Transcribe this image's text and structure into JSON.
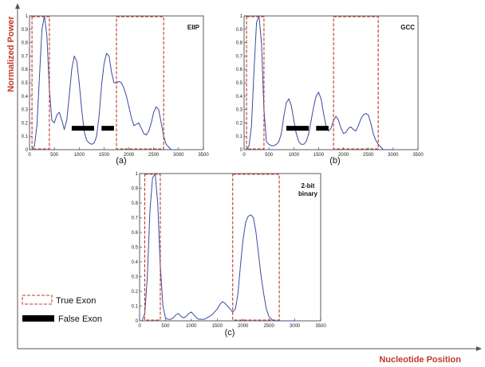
{
  "figure": {
    "ylabel": "Normalized  Power",
    "xlabel": "Nucleotide Position",
    "legend": {
      "true_exon": "True Exon",
      "false_exon": "False  Exon"
    },
    "colors": {
      "curve": "#3b4a9c",
      "true_exon": "#c0392b",
      "false_exon": "#000000",
      "axis_title": "#c0392b"
    }
  },
  "chart_data": [
    {
      "type": "line",
      "title": "EIIP",
      "caption": "(a)",
      "xlim": [
        0,
        3500
      ],
      "ylim": [
        0,
        1
      ],
      "xticks": [
        "0",
        "500",
        "1000",
        "1500",
        "2000",
        "2500",
        "3000",
        "3500"
      ],
      "yticks": [
        "0",
        "0.1",
        "0.2",
        "0.3",
        "0.4",
        "0.5",
        "0.6",
        "0.7",
        "0.8",
        "0.9",
        "1"
      ],
      "x": [
        0,
        50,
        100,
        150,
        200,
        250,
        300,
        350,
        400,
        450,
        500,
        550,
        600,
        650,
        700,
        750,
        800,
        850,
        900,
        950,
        1000,
        1050,
        1100,
        1150,
        1200,
        1250,
        1300,
        1350,
        1400,
        1450,
        1500,
        1550,
        1600,
        1650,
        1700,
        1750,
        1800,
        1850,
        1900,
        1950,
        2000,
        2050,
        2100,
        2150,
        2200,
        2250,
        2300,
        2350,
        2400,
        2450,
        2500,
        2550,
        2600,
        2650,
        2700,
        2750,
        2800,
        2850,
        2900,
        2950,
        3000
      ],
      "y": [
        0.0,
        0.0,
        0.03,
        0.18,
        0.55,
        0.9,
        1.0,
        0.85,
        0.45,
        0.22,
        0.2,
        0.26,
        0.28,
        0.22,
        0.15,
        0.22,
        0.4,
        0.6,
        0.7,
        0.66,
        0.5,
        0.3,
        0.14,
        0.07,
        0.05,
        0.04,
        0.05,
        0.1,
        0.25,
        0.48,
        0.64,
        0.72,
        0.7,
        0.58,
        0.5,
        0.5,
        0.51,
        0.5,
        0.46,
        0.4,
        0.32,
        0.24,
        0.18,
        0.19,
        0.2,
        0.16,
        0.12,
        0.11,
        0.14,
        0.2,
        0.28,
        0.32,
        0.3,
        0.2,
        0.1,
        0.04,
        0.02,
        0.0,
        0.0,
        0.0,
        0.0
      ],
      "true_exons": [
        [
          50,
          400
        ],
        [
          1750,
          2700
        ]
      ],
      "false_exons": [
        [
          850,
          1300
        ],
        [
          1450,
          1700
        ]
      ],
      "false_exon_level": 0.16
    },
    {
      "type": "line",
      "title": "GCC",
      "caption": "(b)",
      "xlim": [
        0,
        3500
      ],
      "ylim": [
        0,
        1
      ],
      "xticks": [
        "0",
        "500",
        "1000",
        "1500",
        "2000",
        "2500",
        "3000",
        "3500"
      ],
      "yticks": [
        "0",
        "0.1",
        "0.2",
        "0.3",
        "0.4",
        "0.5",
        "0.6",
        "0.7",
        "0.8",
        "0.9",
        "1"
      ],
      "x": [
        0,
        50,
        100,
        150,
        200,
        250,
        300,
        350,
        400,
        450,
        500,
        550,
        600,
        650,
        700,
        750,
        800,
        850,
        900,
        950,
        1000,
        1050,
        1100,
        1150,
        1200,
        1250,
        1300,
        1350,
        1400,
        1450,
        1500,
        1550,
        1600,
        1650,
        1700,
        1750,
        1800,
        1850,
        1900,
        1950,
        2000,
        2050,
        2100,
        2150,
        2200,
        2250,
        2300,
        2350,
        2400,
        2450,
        2500,
        2550,
        2600,
        2650,
        2700,
        2750,
        2800,
        2850,
        2900,
        2950,
        3000
      ],
      "y": [
        0.0,
        0.0,
        0.03,
        0.18,
        0.6,
        0.95,
        1.0,
        0.8,
        0.3,
        0.06,
        0.04,
        0.03,
        0.03,
        0.04,
        0.06,
        0.12,
        0.25,
        0.35,
        0.38,
        0.33,
        0.22,
        0.12,
        0.06,
        0.04,
        0.04,
        0.06,
        0.12,
        0.22,
        0.32,
        0.4,
        0.43,
        0.38,
        0.27,
        0.17,
        0.14,
        0.16,
        0.22,
        0.25,
        0.22,
        0.16,
        0.12,
        0.13,
        0.16,
        0.17,
        0.15,
        0.14,
        0.18,
        0.23,
        0.26,
        0.27,
        0.26,
        0.2,
        0.12,
        0.07,
        0.04,
        0.02,
        0.0,
        0.0,
        0.0,
        0.0,
        0.0
      ],
      "true_exons": [
        [
          50,
          400
        ],
        [
          1800,
          2700
        ]
      ],
      "false_exons": [
        [
          850,
          1300
        ],
        [
          1450,
          1700
        ]
      ],
      "false_exon_level": 0.16
    },
    {
      "type": "line",
      "title": "2-bit binary",
      "caption": "(c)",
      "xlim": [
        0,
        3500
      ],
      "ylim": [
        0,
        1
      ],
      "xticks": [
        "0",
        "500",
        "1000",
        "1500",
        "2000",
        "2500",
        "3000",
        "3500"
      ],
      "yticks": [
        "0",
        "0.1",
        "0.2",
        "0.3",
        "0.4",
        "0.5",
        "0.6",
        "0.7",
        "0.8",
        "0.9",
        "1"
      ],
      "x": [
        0,
        50,
        100,
        150,
        200,
        250,
        300,
        350,
        400,
        450,
        500,
        550,
        600,
        650,
        700,
        750,
        800,
        850,
        900,
        950,
        1000,
        1050,
        1100,
        1150,
        1200,
        1250,
        1300,
        1350,
        1400,
        1450,
        1500,
        1550,
        1600,
        1650,
        1700,
        1750,
        1800,
        1850,
        1900,
        1950,
        2000,
        2050,
        2100,
        2150,
        2200,
        2250,
        2300,
        2350,
        2400,
        2450,
        2500,
        2550,
        2600,
        2650,
        2700,
        2750,
        2800,
        2850,
        2900,
        2950,
        3000
      ],
      "y": [
        0.0,
        0.0,
        0.05,
        0.3,
        0.75,
        0.97,
        1.0,
        0.8,
        0.38,
        0.1,
        0.02,
        0.01,
        0.01,
        0.02,
        0.04,
        0.05,
        0.03,
        0.02,
        0.03,
        0.05,
        0.06,
        0.04,
        0.02,
        0.01,
        0.01,
        0.01,
        0.02,
        0.03,
        0.04,
        0.06,
        0.08,
        0.11,
        0.13,
        0.12,
        0.1,
        0.08,
        0.06,
        0.08,
        0.18,
        0.38,
        0.55,
        0.67,
        0.71,
        0.72,
        0.7,
        0.6,
        0.45,
        0.3,
        0.18,
        0.08,
        0.03,
        0.01,
        0.0,
        0.0,
        0.0,
        0.0,
        0.0,
        0.0,
        0.0,
        0.0,
        0.0
      ],
      "true_exons": [
        [
          100,
          400
        ],
        [
          1800,
          2700
        ]
      ],
      "false_exons": []
    }
  ]
}
